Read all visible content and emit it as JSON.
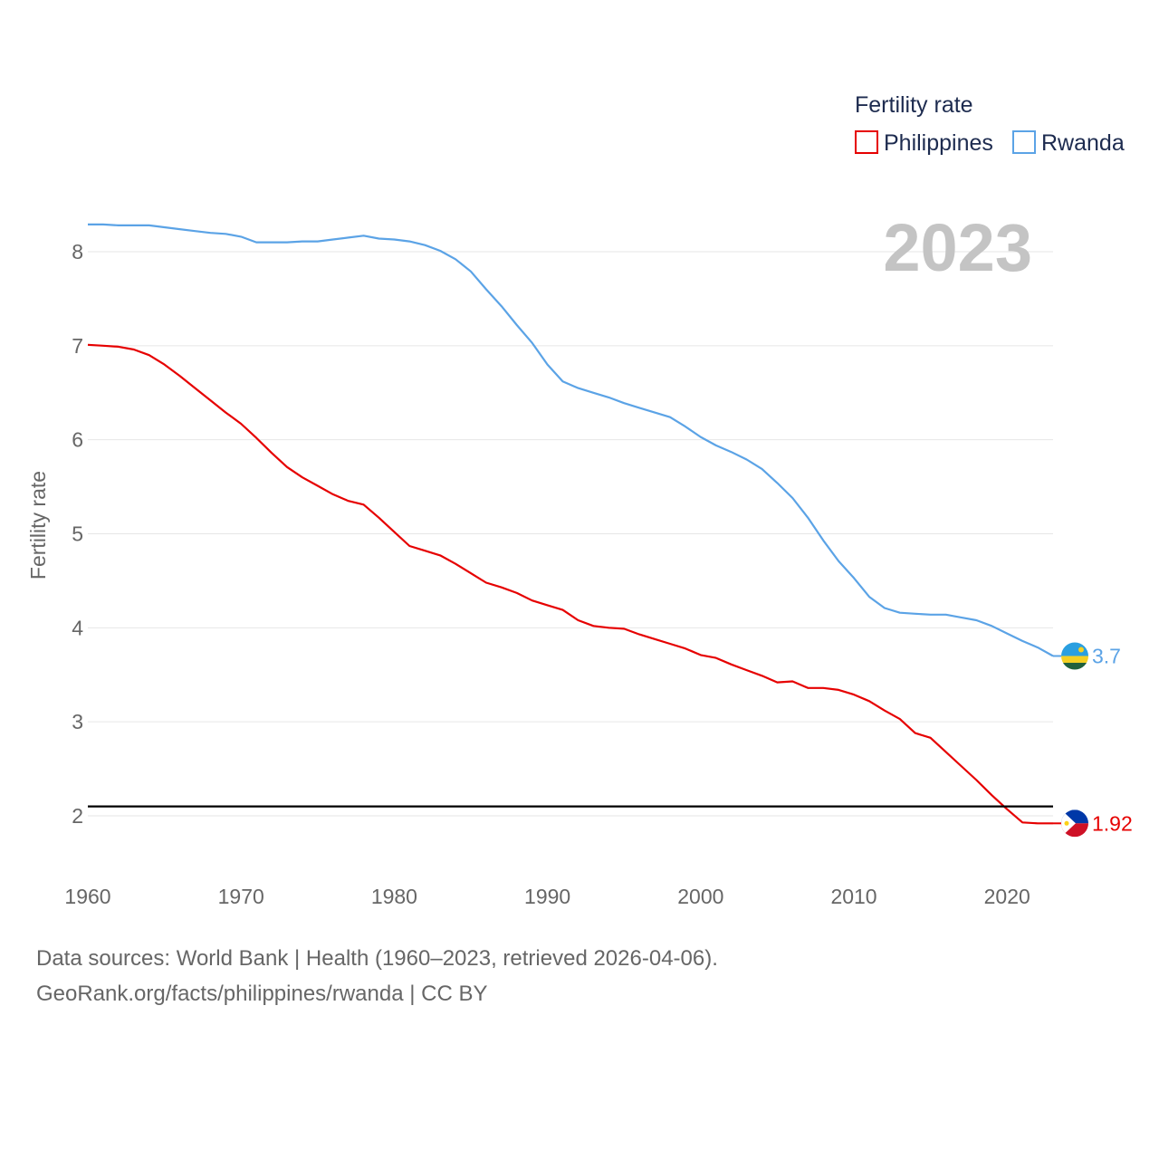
{
  "chart_data": {
    "type": "line",
    "ylabel": "Fertility rate",
    "xlim": [
      1960,
      2023
    ],
    "ylim": [
      1.5,
      8.5
    ],
    "x_ticks": [
      1960,
      1970,
      1980,
      1990,
      2000,
      2010,
      2020
    ],
    "y_ticks": [
      2,
      3,
      4,
      5,
      6,
      7,
      8
    ],
    "year_label": "2023",
    "legend": {
      "title": "Fertility rate",
      "placement": "top-right"
    },
    "reference_line": {
      "y": 2.1,
      "color": "#000000"
    },
    "x": [
      1960,
      1961,
      1962,
      1963,
      1964,
      1965,
      1966,
      1967,
      1968,
      1969,
      1970,
      1971,
      1972,
      1973,
      1974,
      1975,
      1976,
      1977,
      1978,
      1979,
      1980,
      1981,
      1982,
      1983,
      1984,
      1985,
      1986,
      1987,
      1988,
      1989,
      1990,
      1991,
      1992,
      1993,
      1994,
      1995,
      1996,
      1997,
      1998,
      1999,
      2000,
      2001,
      2002,
      2003,
      2004,
      2005,
      2006,
      2007,
      2008,
      2009,
      2010,
      2011,
      2012,
      2013,
      2014,
      2015,
      2016,
      2017,
      2018,
      2019,
      2020,
      2021,
      2022,
      2023
    ],
    "series": [
      {
        "name": "Philippines",
        "color": "#e60000",
        "end_label": "1.92",
        "values": [
          7.01,
          7.0,
          6.99,
          6.96,
          6.9,
          6.8,
          6.68,
          6.55,
          6.42,
          6.29,
          6.17,
          6.02,
          5.86,
          5.71,
          5.6,
          5.51,
          5.42,
          5.35,
          5.31,
          5.17,
          5.02,
          4.87,
          4.82,
          4.77,
          4.68,
          4.58,
          4.48,
          4.43,
          4.37,
          4.29,
          4.24,
          4.19,
          4.08,
          4.02,
          4.0,
          3.99,
          3.93,
          3.88,
          3.83,
          3.78,
          3.71,
          3.68,
          3.61,
          3.55,
          3.49,
          3.42,
          3.43,
          3.36,
          3.36,
          3.34,
          3.29,
          3.22,
          3.12,
          3.03,
          2.88,
          2.83,
          2.68,
          2.53,
          2.38,
          2.22,
          2.07,
          1.93,
          1.92,
          1.92
        ]
      },
      {
        "name": "Rwanda",
        "color": "#5ba3e6",
        "end_label": "3.7",
        "values": [
          8.29,
          8.29,
          8.28,
          8.28,
          8.28,
          8.26,
          8.24,
          8.22,
          8.2,
          8.19,
          8.16,
          8.1,
          8.1,
          8.1,
          8.11,
          8.11,
          8.13,
          8.15,
          8.17,
          8.14,
          8.13,
          8.11,
          8.07,
          8.01,
          7.92,
          7.79,
          7.6,
          7.42,
          7.22,
          7.03,
          6.8,
          6.62,
          6.55,
          6.5,
          6.45,
          6.39,
          6.34,
          6.29,
          6.24,
          6.14,
          6.03,
          5.94,
          5.87,
          5.79,
          5.69,
          5.54,
          5.38,
          5.17,
          4.93,
          4.71,
          4.53,
          4.33,
          4.21,
          4.16,
          4.15,
          4.14,
          4.14,
          4.11,
          4.08,
          4.02,
          3.94,
          3.86,
          3.79,
          3.7
        ]
      }
    ]
  },
  "footer": {
    "sources": "Data sources: World Bank | Health (1960–2023, retrieved 2026-04-06).",
    "attribution": "GeoRank.org/facts/philippines/rwanda | CC BY"
  }
}
